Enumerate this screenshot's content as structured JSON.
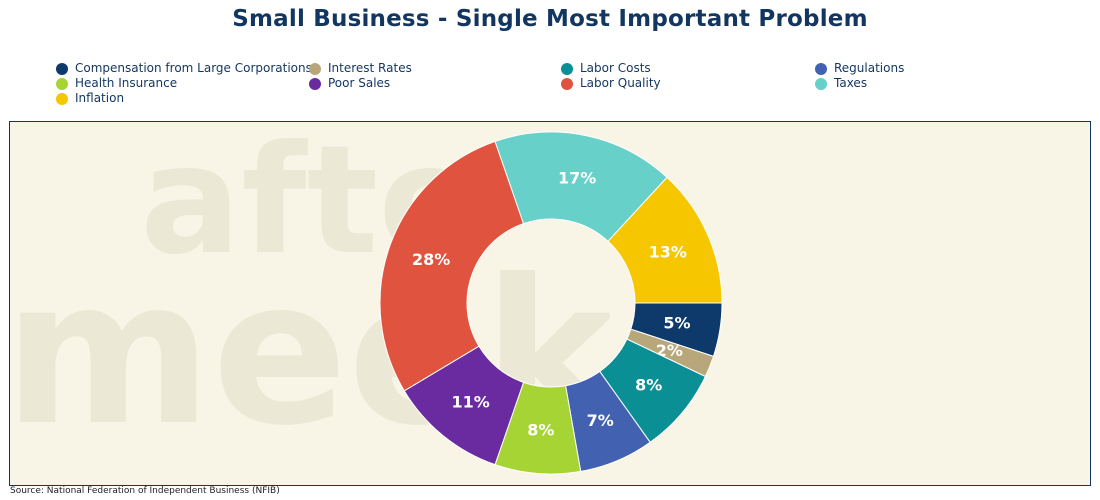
{
  "title": "Small Business - Single Most Important Problem",
  "source": "Source: National Federation of Independent Business (NFIB)",
  "colors": {
    "plot_bg": "#f8f5e6",
    "title": "#12365f",
    "label": "#ffffff"
  },
  "legend": [
    {
      "name": "Compensation from Large Corporations",
      "color": "#0e3a6b"
    },
    {
      "name": "Interest Rates",
      "color": "#b7a77a"
    },
    {
      "name": "Labor Costs",
      "color": "#0a8f95"
    },
    {
      "name": "Regulations",
      "color": "#4361b1"
    },
    {
      "name": "Health Insurance",
      "color": "#a6d435"
    },
    {
      "name": "Poor Sales",
      "color": "#6a2ba1"
    },
    {
      "name": "Labor Quality",
      "color": "#e0543f"
    },
    {
      "name": "Taxes",
      "color": "#67d0c9"
    },
    {
      "name": "Inflation",
      "color": "#f6c700"
    }
  ],
  "chart_data": {
    "type": "pie",
    "donut": true,
    "title": "Small Business - Single Most Important Problem",
    "legend_position": "top",
    "slices": [
      {
        "name": "Compensation from Large Corporations",
        "value": 5,
        "label": "5%",
        "color": "#0e3a6b"
      },
      {
        "name": "Interest Rates",
        "value": 2,
        "label": "2%",
        "color": "#b7a77a"
      },
      {
        "name": "Labor Costs",
        "value": 8,
        "label": "8%",
        "color": "#0a8f95"
      },
      {
        "name": "Regulations",
        "value": 7,
        "label": "7%",
        "color": "#4361b1"
      },
      {
        "name": "Health Insurance",
        "value": 8,
        "label": "8%",
        "color": "#a6d435"
      },
      {
        "name": "Poor Sales",
        "value": 11,
        "label": "11%",
        "color": "#6a2ba1"
      },
      {
        "name": "Labor Quality",
        "value": 28,
        "label": "28%",
        "color": "#e0543f"
      },
      {
        "name": "Taxes",
        "value": 17,
        "label": "17%",
        "color": "#67d0c9"
      },
      {
        "name": "Inflation",
        "value": 13,
        "label": "13%",
        "color": "#f6c700"
      }
    ]
  }
}
